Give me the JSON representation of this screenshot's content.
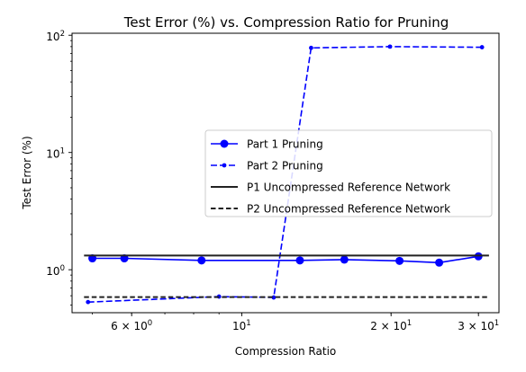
{
  "chart_data": {
    "type": "line",
    "title": "Test Error (%) vs. Compression Ratio for Pruning",
    "xlabel": "Compression Ratio",
    "ylabel": "Test Error (%)",
    "x_scale": "log",
    "y_scale": "log",
    "xlim": [
      4.55,
      33
    ],
    "ylim": [
      0.43,
      104
    ],
    "grid": false,
    "legend_position": "center-right",
    "x_ticks": [
      {
        "value": 6,
        "base": "6 × 10",
        "exp": "0"
      },
      {
        "value": 10,
        "base": "10",
        "exp": "1"
      },
      {
        "value": 20,
        "base": "2 × 10",
        "exp": "1"
      },
      {
        "value": 30,
        "base": "3 × 10",
        "exp": "1"
      }
    ],
    "y_ticks": [
      {
        "value": 1,
        "base": "10",
        "exp": "0"
      },
      {
        "value": 10,
        "base": "10",
        "exp": "1"
      },
      {
        "value": 100,
        "base": "10",
        "exp": "2"
      }
    ],
    "series": [
      {
        "name": "Part 1 Pruning",
        "color": "#0000ff",
        "style": "solid",
        "marker": "large-dot",
        "x": [
          5.0,
          5.8,
          8.3,
          13.1,
          16.1,
          20.8,
          25.0,
          30.0
        ],
        "y": [
          1.25,
          1.25,
          1.2,
          1.2,
          1.22,
          1.19,
          1.15,
          1.3
        ]
      },
      {
        "name": "Part 2 Pruning",
        "color": "#0000ff",
        "style": "dashed",
        "marker": "small-dot",
        "x": [
          4.9,
          9.0,
          11.6,
          13.8,
          19.9,
          30.5
        ],
        "y": [
          0.53,
          0.59,
          0.58,
          78,
          80,
          79
        ]
      },
      {
        "name": "P1 Uncompressed Reference Network",
        "color": "#222222",
        "style": "solid",
        "marker": "none",
        "x": [
          4.81,
          31.5
        ],
        "y": [
          1.32,
          1.32
        ]
      },
      {
        "name": "P2 Uncompressed Reference Network",
        "color": "#222222",
        "style": "dashed",
        "marker": "none",
        "x": [
          4.81,
          31.5
        ],
        "y": [
          0.585,
          0.585
        ]
      }
    ]
  }
}
